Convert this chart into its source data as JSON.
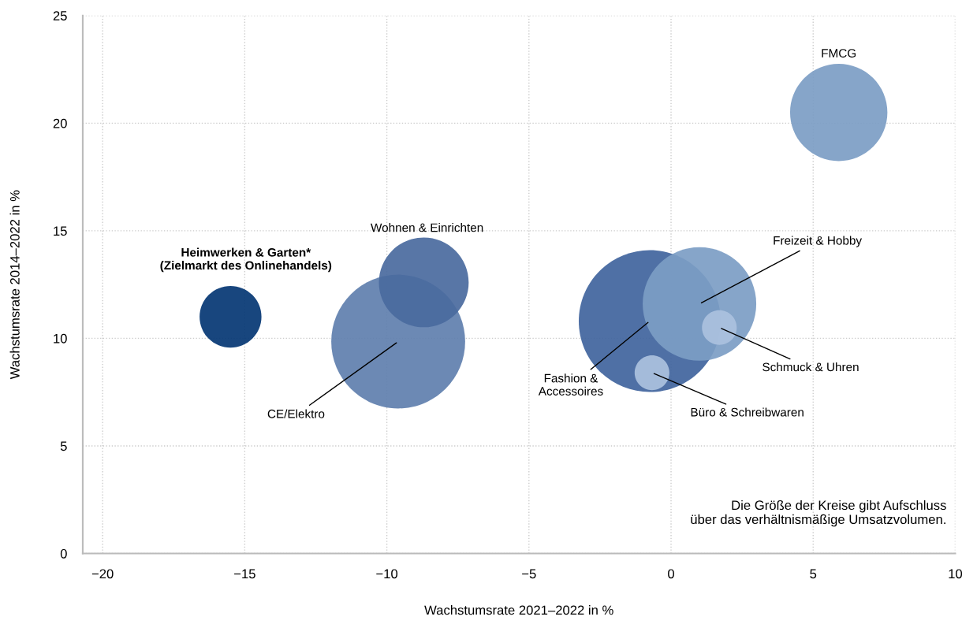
{
  "chart_data": {
    "type": "bubble",
    "xlabel": "Wachstumsrate 2021–2022 in %",
    "ylabel": "Wachstumsrate 2014–2022 in %",
    "xlim": [
      -20.7,
      10
    ],
    "xticks": [
      {
        "value": -20,
        "label": "−20"
      },
      {
        "value": -15,
        "label": "−15"
      },
      {
        "value": -10,
        "label": "−10"
      },
      {
        "value": -5,
        "label": "−5"
      },
      0,
      5,
      10
    ],
    "ylim": [
      0,
      25
    ],
    "yticks": [
      0,
      5,
      10,
      15,
      20,
      25
    ],
    "grid": true,
    "legend": false,
    "series": [
      {
        "name": "Heimwerken & Garten*\n(Zielmarkt des Onlinehandels)",
        "color": "#043673",
        "x": [
          -15.5
        ],
        "values": [
          11.0
        ],
        "sizes": [
          0.19
        ]
      },
      {
        "name": "CE/Elektro",
        "color": "#5f7fae",
        "x": [
          -9.6
        ],
        "values": [
          9.85
        ],
        "sizes": [
          0.89
        ]
      },
      {
        "name": "Wohnen & Einrichten",
        "color": "#4a6a9e",
        "x": [
          -8.7
        ],
        "values": [
          12.6
        ],
        "sizes": [
          0.4
        ]
      },
      {
        "name": "Fashion &\nAccessoires",
        "color": "#40649d",
        "x": [
          -0.75
        ],
        "values": [
          10.8
        ],
        "sizes": [
          1.0
        ]
      },
      {
        "name": "Freizeit & Hobby",
        "color": "#7c9dc4",
        "x": [
          1.0
        ],
        "values": [
          11.6
        ],
        "sizes": [
          0.64
        ]
      },
      {
        "name": "Schmuck & Uhren",
        "color": "#abc1de",
        "x": [
          1.7
        ],
        "values": [
          10.5
        ],
        "sizes": [
          0.06
        ]
      },
      {
        "name": "Büro & Schreibwaren",
        "color": "#abc1de",
        "x": [
          -0.67
        ],
        "values": [
          8.4
        ],
        "sizes": [
          0.06
        ]
      },
      {
        "name": "FMCG",
        "color": "#7c9dc4",
        "x": [
          5.9
        ],
        "values": [
          20.5
        ],
        "sizes": [
          0.47
        ]
      }
    ],
    "annotations": [
      "Die Größe der Kreise gibt Aufschluss\nüber das verhältnismäßige Umsatzvolumen."
    ]
  }
}
